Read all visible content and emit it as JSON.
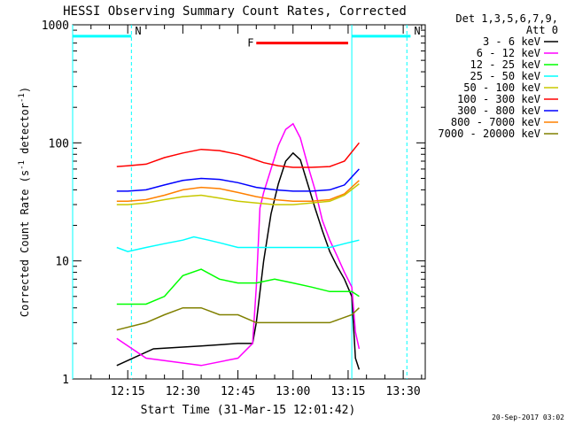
{
  "chart_data": {
    "type": "line",
    "title": "HESSI Observing Summary Count Rates, Corrected",
    "xlabel": "Start Time (31-Mar-15 12:01:42)",
    "ylabel": "Corrected Count Rate (s⁻¹ detector⁻¹)",
    "ylabel_parts": [
      "Corrected Count Rate (s",
      "-1",
      " detector",
      "-1",
      ")"
    ],
    "y_scale": "log",
    "ylim": [
      1,
      1000
    ],
    "y_ticks": [
      "1",
      "10",
      "100",
      "1000"
    ],
    "xlim_minutes": [
      0,
      96
    ],
    "x_ticks": [
      {
        "label": "12:15",
        "t": 15
      },
      {
        "label": "12:30",
        "t": 30
      },
      {
        "label": "12:45",
        "t": 45
      },
      {
        "label": "13:00",
        "t": 60
      },
      {
        "label": "13:15",
        "t": 75
      },
      {
        "label": "13:30",
        "t": 90
      }
    ],
    "legend_header": [
      "Det 1,3,5,6,7,9,",
      "Att 0"
    ],
    "legend_position": "right",
    "series": [
      {
        "name": "3 - 6 keV",
        "color": "#000000",
        "points": [
          [
            12,
            1.3
          ],
          [
            22,
            1.8
          ],
          [
            35,
            1.9
          ],
          [
            45,
            2.0
          ],
          [
            49,
            2.0
          ],
          [
            50,
            3
          ],
          [
            52,
            10
          ],
          [
            54,
            25
          ],
          [
            56,
            45
          ],
          [
            58,
            70
          ],
          [
            60,
            82
          ],
          [
            62,
            72
          ],
          [
            64,
            45
          ],
          [
            66,
            28
          ],
          [
            68,
            18
          ],
          [
            70,
            12
          ],
          [
            72,
            9
          ],
          [
            74,
            7
          ],
          [
            76,
            5
          ],
          [
            77,
            1.5
          ],
          [
            78,
            1.2
          ]
        ]
      },
      {
        "name": "6 - 12 keV",
        "color": "#ff00ff",
        "points": [
          [
            12,
            2.2
          ],
          [
            20,
            1.5
          ],
          [
            35,
            1.3
          ],
          [
            45,
            1.5
          ],
          [
            49,
            2.0
          ],
          [
            50,
            6
          ],
          [
            51,
            28
          ],
          [
            52,
            38
          ],
          [
            54,
            60
          ],
          [
            56,
            95
          ],
          [
            58,
            130
          ],
          [
            60,
            145
          ],
          [
            62,
            110
          ],
          [
            64,
            65
          ],
          [
            66,
            40
          ],
          [
            68,
            22
          ],
          [
            70,
            15
          ],
          [
            72,
            11
          ],
          [
            74,
            8
          ],
          [
            76,
            6
          ],
          [
            77,
            2.5
          ],
          [
            78,
            1.8
          ]
        ]
      },
      {
        "name": "12 - 25 keV",
        "color": "#00ff00",
        "points": [
          [
            12,
            4.3
          ],
          [
            20,
            4.3
          ],
          [
            25,
            5.0
          ],
          [
            30,
            7.5
          ],
          [
            35,
            8.5
          ],
          [
            40,
            7.0
          ],
          [
            45,
            6.5
          ],
          [
            50,
            6.5
          ],
          [
            55,
            7.0
          ],
          [
            60,
            6.5
          ],
          [
            65,
            6.0
          ],
          [
            70,
            5.5
          ],
          [
            76,
            5.5
          ],
          [
            78,
            5.0
          ]
        ]
      },
      {
        "name": "25 - 50 keV",
        "color": "#00ffff",
        "points": [
          [
            12,
            13
          ],
          [
            15,
            12
          ],
          [
            20,
            13
          ],
          [
            25,
            14
          ],
          [
            30,
            15
          ],
          [
            33,
            16
          ],
          [
            37,
            15
          ],
          [
            41,
            14
          ],
          [
            45,
            13
          ],
          [
            50,
            13
          ],
          [
            55,
            13
          ],
          [
            60,
            13
          ],
          [
            65,
            13
          ],
          [
            70,
            13
          ],
          [
            74,
            14
          ],
          [
            78,
            15
          ]
        ]
      },
      {
        "name": "50 - 100 keV",
        "color": "#c8c800",
        "points": [
          [
            12,
            30
          ],
          [
            15,
            30
          ],
          [
            20,
            31
          ],
          [
            25,
            33
          ],
          [
            30,
            35
          ],
          [
            35,
            36
          ],
          [
            40,
            34
          ],
          [
            45,
            32
          ],
          [
            50,
            31
          ],
          [
            55,
            30
          ],
          [
            60,
            30
          ],
          [
            65,
            31
          ],
          [
            70,
            32
          ],
          [
            74,
            36
          ],
          [
            78,
            45
          ]
        ]
      },
      {
        "name": "100 - 300 keV",
        "color": "#ff0000",
        "points": [
          [
            12,
            63
          ],
          [
            15,
            64
          ],
          [
            20,
            66
          ],
          [
            25,
            75
          ],
          [
            30,
            82
          ],
          [
            35,
            88
          ],
          [
            40,
            86
          ],
          [
            45,
            80
          ],
          [
            48,
            75
          ],
          [
            52,
            68
          ],
          [
            56,
            64
          ],
          [
            60,
            62
          ],
          [
            65,
            62
          ],
          [
            70,
            63
          ],
          [
            74,
            70
          ],
          [
            78,
            100
          ]
        ]
      },
      {
        "name": "300 - 800 keV",
        "color": "#0000ff",
        "points": [
          [
            12,
            39
          ],
          [
            15,
            39
          ],
          [
            20,
            40
          ],
          [
            25,
            44
          ],
          [
            30,
            48
          ],
          [
            35,
            50
          ],
          [
            40,
            49
          ],
          [
            45,
            46
          ],
          [
            50,
            42
          ],
          [
            55,
            40
          ],
          [
            60,
            39
          ],
          [
            65,
            39
          ],
          [
            70,
            40
          ],
          [
            74,
            44
          ],
          [
            78,
            60
          ]
        ]
      },
      {
        "name": "800 - 7000 keV",
        "color": "#ff8000",
        "points": [
          [
            12,
            32
          ],
          [
            15,
            32
          ],
          [
            20,
            33
          ],
          [
            25,
            36
          ],
          [
            30,
            40
          ],
          [
            35,
            42
          ],
          [
            40,
            41
          ],
          [
            45,
            38
          ],
          [
            50,
            35
          ],
          [
            55,
            33
          ],
          [
            60,
            32
          ],
          [
            65,
            32
          ],
          [
            70,
            33
          ],
          [
            74,
            37
          ],
          [
            78,
            48
          ]
        ]
      },
      {
        "name": "7000 - 20000 keV",
        "color": "#808000",
        "points": [
          [
            12,
            2.6
          ],
          [
            20,
            3.0
          ],
          [
            25,
            3.5
          ],
          [
            30,
            4.0
          ],
          [
            35,
            4.0
          ],
          [
            40,
            3.5
          ],
          [
            45,
            3.5
          ],
          [
            50,
            3.0
          ],
          [
            55,
            3.0
          ],
          [
            60,
            3.0
          ],
          [
            65,
            3.0
          ],
          [
            70,
            3.0
          ],
          [
            76,
            3.5
          ],
          [
            78,
            4.0
          ]
        ]
      }
    ],
    "annotations": [
      {
        "label": "N",
        "color": "#00ffff",
        "t_start": -2,
        "t_end": 16,
        "y": 800
      },
      {
        "label": "N",
        "color": "#00ffff",
        "t_start": 76,
        "t_end": 92,
        "y": 800
      },
      {
        "label": "F",
        "color": "#ff0000",
        "t_start": 50,
        "t_end": 75,
        "y": 700
      }
    ],
    "vlines": [
      {
        "t": 16,
        "color": "#00ffff",
        "style": "dashed"
      },
      {
        "t": 91,
        "color": "#00ffff",
        "style": "dashed"
      },
      {
        "t": -2,
        "color": "#00ffff",
        "style": "solid"
      },
      {
        "t": 76,
        "color": "#00ffff",
        "style": "solid"
      }
    ]
  },
  "footer": {
    "timestamp": "20-Sep-2017 03:02"
  }
}
